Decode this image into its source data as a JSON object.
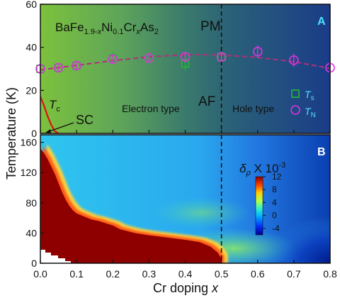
{
  "chart_data": [
    {
      "panel": "A",
      "type": "scatter",
      "compound": {
        "pre": "BaFe",
        "sub1": "1.9-",
        "sub1x": "x",
        "mid1": "Ni",
        "sub2": "0.1",
        "mid2": "Cr",
        "sub3": "x",
        "post": "As",
        "sub4": "2"
      },
      "xlim": [
        0,
        0.8
      ],
      "ylim": [
        0,
        60
      ],
      "yticks": [
        0,
        20,
        40,
        60
      ],
      "ylabel": "Temperature (K)",
      "region_labels": {
        "pm": "PM",
        "af": "AF",
        "sc": "SC",
        "electron": "Electron type",
        "hole": "Hole type"
      },
      "tc_label": {
        "main": "T",
        "sub": "c"
      },
      "boundary_x": 0.5,
      "series": [
        {
          "name": "Ts",
          "name_main": "T",
          "name_sub": "s",
          "marker": "square",
          "color": "#22bb33",
          "x": [
            0.0,
            0.05,
            0.1,
            0.2,
            0.3,
            0.4,
            0.5
          ],
          "y": [
            30,
            30.5,
            31.5,
            35,
            35,
            32.5,
            35.5
          ],
          "err": [
            2,
            2,
            2.5,
            3,
            2.5,
            3,
            2
          ]
        },
        {
          "name": "TN",
          "name_main": "T",
          "name_sub": "N",
          "marker": "circle",
          "color": "#dd33dd",
          "x": [
            0.0,
            0.05,
            0.1,
            0.2,
            0.3,
            0.4,
            0.5,
            0.6,
            0.7,
            0.8
          ],
          "y": [
            30,
            30.5,
            31.5,
            34.5,
            35,
            35.5,
            35.5,
            38,
            34,
            30.5
          ],
          "err": [
            1.5,
            1.5,
            2,
            2,
            2,
            2,
            2,
            3,
            3,
            2
          ]
        }
      ],
      "fit_curve": {
        "color": "#b0307a",
        "x": [
          0.0,
          0.1,
          0.2,
          0.3,
          0.4,
          0.45,
          0.5,
          0.6,
          0.7,
          0.8
        ],
        "y": [
          29.5,
          31.6,
          33.8,
          35.6,
          36.5,
          36.6,
          36.4,
          35.3,
          33.3,
          30.2
        ]
      },
      "tc_curve": {
        "color": "#dd1111",
        "x": [
          0.0,
          0.01,
          0.02,
          0.03,
          0.04,
          0.05
        ],
        "y": [
          17,
          13,
          8,
          4,
          1,
          0
        ]
      }
    },
    {
      "panel": "B",
      "type": "heatmap",
      "xlim": [
        0,
        0.8
      ],
      "ylim": [
        0,
        170
      ],
      "xticks": [
        0.0,
        0.1,
        0.2,
        0.3,
        0.4,
        0.5,
        0.6,
        0.7,
        0.8
      ],
      "yticks": [
        0,
        40,
        80,
        120,
        160
      ],
      "xlabel_main": "Cr doping ",
      "xlabel_var": "x",
      "colorbar": {
        "label_main": "δ",
        "label_sub": "ρ",
        "label_rest": " X 10",
        "label_exp": "-3",
        "ticks": [
          12,
          8,
          4,
          0,
          -4
        ],
        "range": [
          -6,
          12
        ]
      },
      "boundary_x": 0.5
    }
  ]
}
